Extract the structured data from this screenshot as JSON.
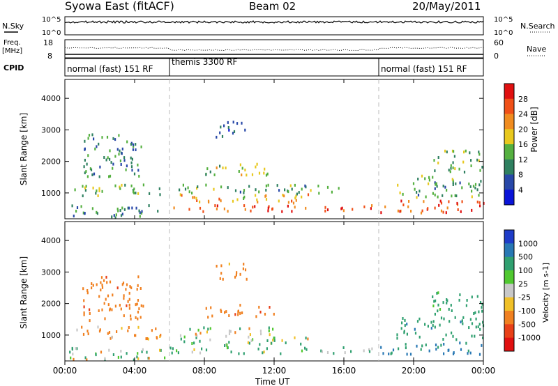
{
  "header": {
    "site": "Syowa East (fitACF)",
    "beam": "Beam 02",
    "date": "20/May/2011"
  },
  "summary_panels": {
    "nsky_label": "N.Sky",
    "nsky_ticks": [
      "10^5",
      "10^0"
    ],
    "nsearch_label": "N.Search",
    "nsearch_ticks": [
      "10^5",
      "10^0"
    ],
    "freq_label_lines": [
      "Freq.",
      "[MHz]"
    ],
    "freq_ticks": [
      "18",
      "8"
    ],
    "nave_label": "Nave",
    "nave_ticks": [
      "60",
      "0"
    ],
    "cpid_label": "CPID",
    "cpid_segments": [
      {
        "label": "normal (fast) 151 RF",
        "start_h": 0,
        "end_h": 6
      },
      {
        "label": "themis 3300 RF",
        "start_h": 6,
        "end_h": 18
      },
      {
        "label": "normal (fast) 151 RF",
        "start_h": 18,
        "end_h": 24
      }
    ]
  },
  "chart_data": [
    {
      "type": "heatmap",
      "panel": "power",
      "xlabel": "Time UT",
      "ylabel": "Slant Range [km]",
      "x_ticks": [
        "00:00",
        "04:00",
        "08:00",
        "12:00",
        "16:00",
        "20:00",
        "00:00"
      ],
      "xlim_h": [
        0,
        24
      ],
      "y_ticks": [
        1000,
        2000,
        3000,
        4000
      ],
      "ylim_km": [
        180,
        4600
      ],
      "colorbar_label": "Power [dB]",
      "colorbar_ticks": [
        "4",
        "8",
        "12",
        "16",
        "20",
        "24",
        "28"
      ],
      "colorbar_colors": [
        "#0a14d8",
        "#2848a8",
        "#2f8060",
        "#55b040",
        "#e8c81e",
        "#f08c20",
        "#f05018",
        "#e01010"
      ],
      "colormap_levels": [
        0,
        4,
        8,
        12,
        16,
        20,
        24,
        28,
        30
      ],
      "echo_bands": [
        {
          "t0": 0.2,
          "t1": 6.0,
          "r0": 250,
          "r1": 650,
          "level": 10
        },
        {
          "t0": 0.5,
          "t1": 5.5,
          "r0": 900,
          "r1": 1300,
          "level": 14
        },
        {
          "t0": 1.0,
          "t1": 4.5,
          "r0": 1500,
          "r1": 2900,
          "level": 10
        },
        {
          "t0": 6.0,
          "t1": 18.0,
          "r0": 450,
          "r1": 650,
          "level": 26
        },
        {
          "t0": 6.5,
          "t1": 14.0,
          "r0": 700,
          "r1": 1000,
          "level": 20
        },
        {
          "t0": 6.5,
          "t1": 16.0,
          "r0": 1000,
          "r1": 1300,
          "level": 12
        },
        {
          "t0": 8.0,
          "t1": 12.0,
          "r0": 1600,
          "r1": 2000,
          "level": 16
        },
        {
          "t0": 8.5,
          "t1": 10.5,
          "r0": 2800,
          "r1": 3300,
          "level": 8
        },
        {
          "t0": 18.0,
          "t1": 24.0,
          "r0": 400,
          "r1": 800,
          "level": 26
        },
        {
          "t0": 19.0,
          "t1": 24.0,
          "r0": 900,
          "r1": 1600,
          "level": 12
        },
        {
          "t0": 21.0,
          "t1": 24.0,
          "r0": 1700,
          "r1": 2400,
          "level": 14
        }
      ]
    },
    {
      "type": "heatmap",
      "panel": "velocity",
      "xlabel": "Time UT",
      "ylabel": "Slant Range [km]",
      "x_ticks": [
        "00:00",
        "04:00",
        "08:00",
        "12:00",
        "16:00",
        "20:00",
        "00:00"
      ],
      "xlim_h": [
        0,
        24
      ],
      "y_ticks": [
        1000,
        2000,
        3000,
        4000
      ],
      "ylim_km": [
        180,
        4600
      ],
      "colorbar_label": "Velocity [m s-1]",
      "colorbar_ticks": [
        "1000",
        "500",
        "100",
        "25",
        "-25",
        "-100",
        "-500",
        "-1000"
      ],
      "colorbar_colors": [
        "#1e3cc8",
        "#2878b4",
        "#30a070",
        "#50c830",
        "#c8c8c8",
        "#f0c028",
        "#f08020",
        "#e84018",
        "#e01010"
      ],
      "echo_bands": [
        {
          "t0": 0.2,
          "t1": 6.0,
          "r0": 250,
          "r1": 650,
          "level": 60
        },
        {
          "t0": 0.5,
          "t1": 5.5,
          "r0": 900,
          "r1": 1300,
          "level": -120
        },
        {
          "t0": 1.0,
          "t1": 4.5,
          "r0": 1500,
          "r1": 2900,
          "level": -200
        },
        {
          "t0": 6.0,
          "t1": 18.0,
          "r0": 450,
          "r1": 650,
          "level": 80
        },
        {
          "t0": 6.5,
          "t1": 14.0,
          "r0": 700,
          "r1": 1000,
          "level": 60
        },
        {
          "t0": 6.5,
          "t1": 12.0,
          "r0": 1000,
          "r1": 1300,
          "level": 0
        },
        {
          "t0": 8.0,
          "t1": 12.0,
          "r0": 1600,
          "r1": 2000,
          "level": -200
        },
        {
          "t0": 8.5,
          "t1": 10.5,
          "r0": 2800,
          "r1": 3300,
          "level": -150
        },
        {
          "t0": 18.0,
          "t1": 24.0,
          "r0": 400,
          "r1": 800,
          "level": 300
        },
        {
          "t0": 19.0,
          "t1": 24.0,
          "r0": 900,
          "r1": 1600,
          "level": 200
        },
        {
          "t0": 21.0,
          "t1": 24.0,
          "r0": 1700,
          "r1": 2400,
          "level": 150
        }
      ]
    }
  ]
}
